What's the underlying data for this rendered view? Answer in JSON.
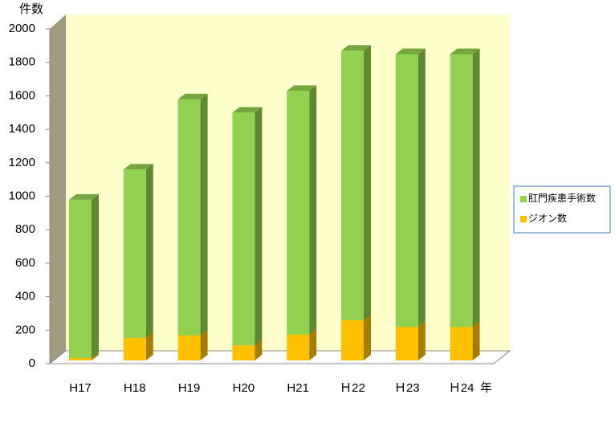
{
  "chart_data": {
    "type": "bar",
    "stacked": true,
    "y_label": "件数",
    "x_label": "年",
    "categories": [
      "H17",
      "H18",
      "H19",
      "H20",
      "H21",
      "Ｈ22",
      "Ｈ23",
      "Ｈ24"
    ],
    "series": [
      {
        "name": "ジオン数",
        "color": "#ffc000",
        "values": [
          15,
          135,
          150,
          90,
          155,
          240,
          200,
          200
        ]
      },
      {
        "name": "肛門疾患手術数",
        "color": "#92d050",
        "values": [
          945,
          1005,
          1410,
          1390,
          1455,
          1610,
          1630,
          1630
        ]
      }
    ],
    "ylim": [
      0,
      2000
    ],
    "yticks": [
      0,
      200,
      400,
      600,
      800,
      1000,
      1200,
      1400,
      1600,
      1800,
      2000
    ],
    "legend": "right"
  }
}
